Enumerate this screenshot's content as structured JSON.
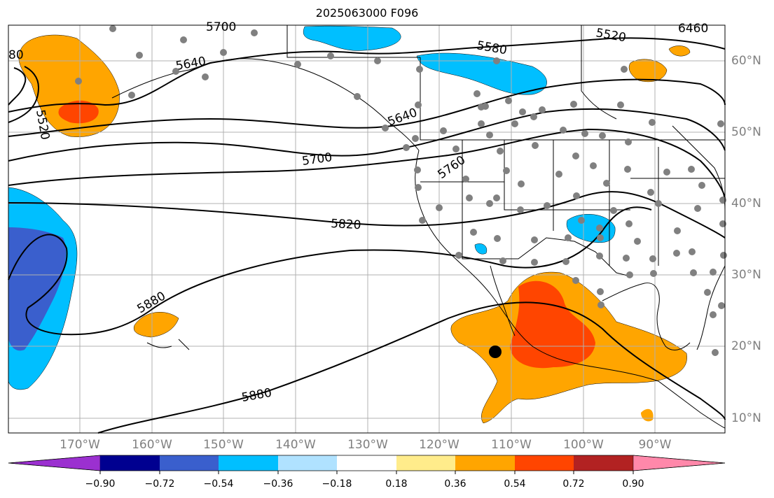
{
  "title": "2025063000 F096",
  "lat_labels": [
    "60°N",
    "50°N",
    "40°N",
    "30°N",
    "20°N",
    "10°N"
  ],
  "lon_labels": [
    "170°W",
    "160°W",
    "150°W",
    "140°W",
    "130°W",
    "120°W",
    "110°W",
    "100°W",
    "90°W"
  ],
  "contour_labels": [
    "5520",
    "5580",
    "5640",
    "5700",
    "5760",
    "5820",
    "5880",
    "6460"
  ],
  "colorbar": {
    "ticks": [
      "−0.90",
      "−0.72",
      "−0.54",
      "−0.36",
      "−0.18",
      "0.18",
      "0.36",
      "0.54",
      "0.72",
      "0.90"
    ],
    "colors": [
      "#9b30d0",
      "#000090",
      "#3a5fcd",
      "#00bfff",
      "#b0e2ff",
      "#ffffff",
      "#ffec8b",
      "#ffa500",
      "#ff4500",
      "#b22222",
      "#ff88aa"
    ]
  },
  "colors": {
    "positive_low": "#ffa500",
    "positive_mid": "#ff4500",
    "negative_low": "#00bfff",
    "negative_mid": "#3a5fcd",
    "station_marker": "#808080",
    "grid": "#b0b0b0",
    "contour": "#000000"
  }
}
